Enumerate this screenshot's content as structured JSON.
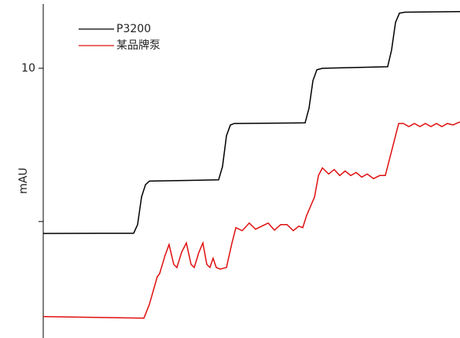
{
  "chart_data": {
    "type": "line",
    "y_label": "mAU",
    "xlim": [
      0,
      53
    ],
    "ylim": [
      1.2,
      12.1
    ],
    "yticks": [
      10
    ],
    "minor_yticks": [
      5
    ],
    "legend": "upper left",
    "series": [
      {
        "name": "P3200",
        "color": "#000000",
        "x": [
          0,
          11.5,
          12,
          12.5,
          13,
          13.5,
          22.3,
          22.8,
          23.3,
          23.8,
          24.3,
          33.3,
          33.8,
          34.3,
          34.8,
          35.5,
          43.8,
          44.3,
          44.8,
          45.3,
          46,
          53
        ],
        "values": [
          4.61,
          4.62,
          4.9,
          5.8,
          6.2,
          6.32,
          6.36,
          6.8,
          7.8,
          8.15,
          8.2,
          8.22,
          8.7,
          9.6,
          9.95,
          10.0,
          10.05,
          10.6,
          11.5,
          11.8,
          11.83,
          11.85
        ]
      },
      {
        "name": "某品牌泵",
        "color": "#e01010",
        "x": [
          0,
          12.8,
          13.5,
          14.5,
          14.8,
          15.5,
          16,
          16.6,
          17,
          17.6,
          18.2,
          18.8,
          19.2,
          19.8,
          20.3,
          20.8,
          21.2,
          21.6,
          22,
          22.5,
          23.3,
          24,
          24.5,
          25.3,
          26.2,
          27,
          27.8,
          28.6,
          29.4,
          30.2,
          31,
          31.8,
          32.5,
          33,
          33.5,
          34.5,
          35,
          35.5,
          36.3,
          37,
          37.7,
          38.4,
          39.1,
          39.8,
          40.5,
          41.2,
          42,
          42.8,
          43.5,
          44,
          44.5,
          45.2,
          45.8,
          46.5,
          47.2,
          47.9,
          48.6,
          49.3,
          50,
          50.7,
          51.4,
          52.1,
          53
        ],
        "values": [
          1.9,
          1.85,
          2.3,
          3.2,
          3.3,
          3.9,
          4.25,
          3.6,
          3.5,
          4.0,
          4.3,
          3.6,
          3.5,
          4.0,
          4.3,
          3.6,
          3.5,
          3.8,
          3.5,
          3.45,
          3.5,
          4.3,
          4.8,
          4.7,
          4.95,
          4.75,
          4.85,
          4.95,
          4.72,
          4.9,
          4.9,
          4.7,
          4.85,
          4.8,
          5.2,
          5.8,
          6.5,
          6.75,
          6.55,
          6.7,
          6.5,
          6.65,
          6.5,
          6.6,
          6.45,
          6.55,
          6.4,
          6.5,
          6.5,
          7.0,
          7.5,
          8.2,
          8.2,
          8.1,
          8.2,
          8.1,
          8.2,
          8.1,
          8.2,
          8.1,
          8.2,
          8.15,
          8.25
        ]
      }
    ]
  }
}
